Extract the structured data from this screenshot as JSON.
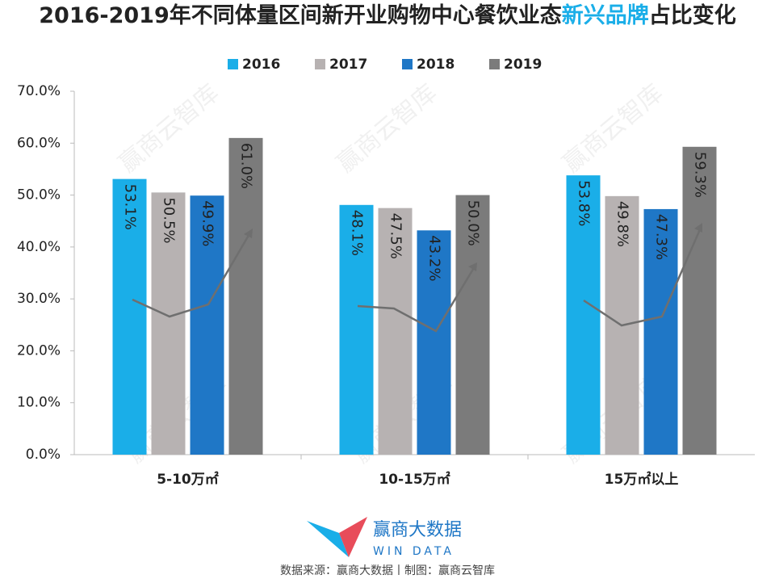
{
  "chart_data": {
    "type": "bar",
    "title_parts": [
      "2016-2019年不同体量区间新开业购物中心餐饮业态",
      "新兴品牌",
      "占比变化"
    ],
    "title_highlight_color": "#1aaee8",
    "categories": [
      "5-10万㎡",
      "10-15万㎡",
      "15万㎡以上"
    ],
    "series": [
      {
        "name": "2016",
        "color": "#1aaee8",
        "values": [
          53.1,
          48.1,
          53.8
        ],
        "value_labels": [
          "53.1%",
          "48.1%",
          "53.8%"
        ]
      },
      {
        "name": "2017",
        "color": "#b7b2b2",
        "values": [
          50.5,
          47.5,
          49.8
        ],
        "value_labels": [
          "50.5%",
          "47.5%",
          "49.8%"
        ]
      },
      {
        "name": "2018",
        "color": "#1f77c6",
        "values": [
          49.9,
          43.2,
          47.3
        ],
        "value_labels": [
          "49.9%",
          "43.2%",
          "47.3%"
        ]
      },
      {
        "name": "2019",
        "color": "#7b7b7b",
        "values": [
          61.0,
          50.0,
          59.3
        ],
        "value_labels": [
          "61.0%",
          "50.0%",
          "59.3%"
        ]
      }
    ],
    "ylim": [
      0,
      70
    ],
    "yticks": [
      {
        "value": 0,
        "label": "0.0%"
      },
      {
        "value": 10,
        "label": "10.0%"
      },
      {
        "value": 20,
        "label": "20.0%"
      },
      {
        "value": 30,
        "label": "30.0%"
      },
      {
        "value": 40,
        "label": "40.0%"
      },
      {
        "value": 50,
        "label": "50.0%"
      },
      {
        "value": 60,
        "label": "60.0%"
      },
      {
        "value": 70,
        "label": "70.0%"
      }
    ],
    "grid": false,
    "legend": "top",
    "watermark": "赢商云智库",
    "logo_name": "赢商大数据",
    "logo_subtitle": "WIN DATA",
    "source": "数据来源：赢商大数据丨制图：赢商云智库"
  }
}
